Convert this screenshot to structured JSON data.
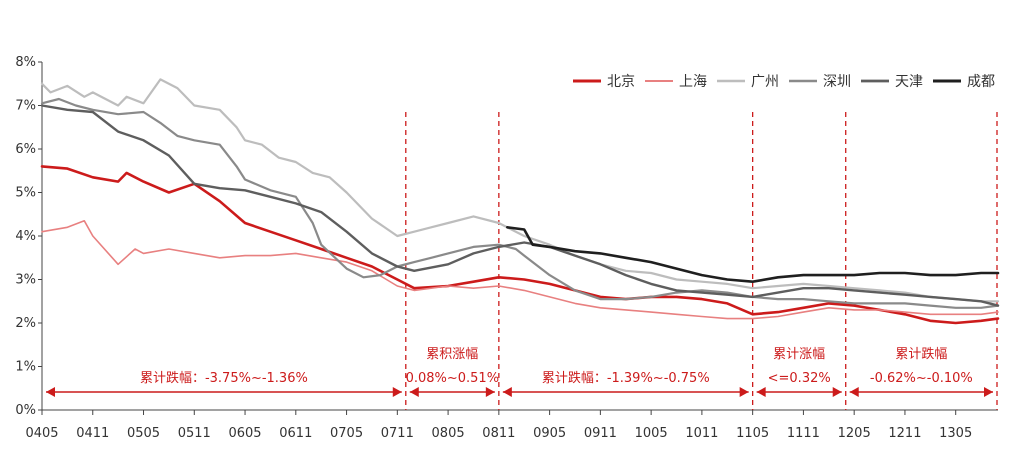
{
  "chart_data": {
    "type": "line",
    "title": "",
    "xlabel": "",
    "ylabel": "",
    "ylim": [
      0,
      8
    ],
    "yticks": [
      "0%",
      "1%",
      "2%",
      "3%",
      "4%",
      "5%",
      "6%",
      "7%",
      "8%"
    ],
    "x_ticks": [
      "0405",
      "0411",
      "0505",
      "0511",
      "0605",
      "0611",
      "0705",
      "0711",
      "0805",
      "0811",
      "0905",
      "0911",
      "1005",
      "1011",
      "1105",
      "1111",
      "1205",
      "1211",
      "1305"
    ],
    "x_range": [
      "0405",
      "1310"
    ],
    "grid": false,
    "legend": "top-right",
    "series": [
      {
        "name": "北京",
        "color": "#cc1b1b",
        "width": 2.6,
        "points": [
          [
            "0405",
            5.6
          ],
          [
            "0408",
            5.55
          ],
          [
            "0411",
            5.35
          ],
          [
            "0502",
            5.25
          ],
          [
            "0503",
            5.45
          ],
          [
            "0505",
            5.25
          ],
          [
            "0508",
            5.0
          ],
          [
            "0511",
            5.2
          ],
          [
            "0602",
            4.8
          ],
          [
            "0605",
            4.3
          ],
          [
            "0608",
            4.1
          ],
          [
            "0611",
            3.9
          ],
          [
            "0702",
            3.7
          ],
          [
            "0705",
            3.5
          ],
          [
            "0708",
            3.3
          ],
          [
            "0711",
            3.0
          ],
          [
            "0801",
            2.8
          ],
          [
            "0805",
            2.85
          ],
          [
            "0808",
            2.95
          ],
          [
            "0811",
            3.05
          ],
          [
            "0902",
            3.0
          ],
          [
            "0905",
            2.9
          ],
          [
            "0908",
            2.75
          ],
          [
            "0911",
            2.6
          ],
          [
            "1002",
            2.55
          ],
          [
            "1005",
            2.6
          ],
          [
            "1008",
            2.6
          ],
          [
            "1011",
            2.55
          ],
          [
            "1102",
            2.45
          ],
          [
            "1105",
            2.2
          ],
          [
            "1108",
            2.25
          ],
          [
            "1111",
            2.35
          ],
          [
            "1202",
            2.45
          ],
          [
            "1205",
            2.4
          ],
          [
            "1208",
            2.3
          ],
          [
            "1211",
            2.2
          ],
          [
            "1302",
            2.05
          ],
          [
            "1305",
            2.0
          ],
          [
            "1308",
            2.05
          ],
          [
            "1310",
            2.1
          ]
        ]
      },
      {
        "name": "上海",
        "color": "#e88080",
        "width": 1.6,
        "points": [
          [
            "0405",
            4.1
          ],
          [
            "0408",
            4.2
          ],
          [
            "0410",
            4.35
          ],
          [
            "0411",
            4.0
          ],
          [
            "0502",
            3.35
          ],
          [
            "0504",
            3.7
          ],
          [
            "0505",
            3.6
          ],
          [
            "0508",
            3.7
          ],
          [
            "0511",
            3.6
          ],
          [
            "0602",
            3.5
          ],
          [
            "0605",
            3.55
          ],
          [
            "0608",
            3.55
          ],
          [
            "0611",
            3.6
          ],
          [
            "0702",
            3.5
          ],
          [
            "0705",
            3.4
          ],
          [
            "0708",
            3.2
          ],
          [
            "0711",
            2.85
          ],
          [
            "0801",
            2.75
          ],
          [
            "0805",
            2.85
          ],
          [
            "0808",
            2.8
          ],
          [
            "0811",
            2.85
          ],
          [
            "0902",
            2.75
          ],
          [
            "0905",
            2.6
          ],
          [
            "0908",
            2.45
          ],
          [
            "0911",
            2.35
          ],
          [
            "1002",
            2.3
          ],
          [
            "1005",
            2.25
          ],
          [
            "1008",
            2.2
          ],
          [
            "1011",
            2.15
          ],
          [
            "1102",
            2.1
          ],
          [
            "1105",
            2.1
          ],
          [
            "1108",
            2.15
          ],
          [
            "1111",
            2.25
          ],
          [
            "1202",
            2.35
          ],
          [
            "1205",
            2.3
          ],
          [
            "1208",
            2.3
          ],
          [
            "1211",
            2.25
          ],
          [
            "1302",
            2.2
          ],
          [
            "1305",
            2.2
          ],
          [
            "1308",
            2.2
          ],
          [
            "1310",
            2.25
          ]
        ]
      },
      {
        "name": "广州",
        "color": "#bdbdbd",
        "width": 2.2,
        "points": [
          [
            "0405",
            7.5
          ],
          [
            "0406",
            7.3
          ],
          [
            "0408",
            7.45
          ],
          [
            "0410",
            7.2
          ],
          [
            "0411",
            7.3
          ],
          [
            "0502",
            7.0
          ],
          [
            "0503",
            7.2
          ],
          [
            "0505",
            7.05
          ],
          [
            "0507",
            7.6
          ],
          [
            "0509",
            7.4
          ],
          [
            "0511",
            7.0
          ],
          [
            "0602",
            6.9
          ],
          [
            "0604",
            6.5
          ],
          [
            "0605",
            6.2
          ],
          [
            "0607",
            6.1
          ],
          [
            "0609",
            5.8
          ],
          [
            "0611",
            5.7
          ],
          [
            "0701",
            5.45
          ],
          [
            "0703",
            5.35
          ],
          [
            "0705",
            5.0
          ],
          [
            "0708",
            4.4
          ],
          [
            "0711",
            4.0
          ],
          [
            "0801",
            4.1
          ],
          [
            "0803",
            4.2
          ],
          [
            "0805",
            4.3
          ],
          [
            "0808",
            4.45
          ],
          [
            "0811",
            4.3
          ],
          [
            "0902",
            4.0
          ],
          [
            "0905",
            3.8
          ],
          [
            "0908",
            3.55
          ],
          [
            "0911",
            3.35
          ],
          [
            "1002",
            3.2
          ],
          [
            "1005",
            3.15
          ],
          [
            "1008",
            3.0
          ],
          [
            "1011",
            2.95
          ],
          [
            "1102",
            2.9
          ],
          [
            "1105",
            2.8
          ],
          [
            "1108",
            2.85
          ],
          [
            "1111",
            2.9
          ],
          [
            "1202",
            2.85
          ],
          [
            "1205",
            2.8
          ],
          [
            "1208",
            2.75
          ],
          [
            "1211",
            2.7
          ],
          [
            "1302",
            2.6
          ],
          [
            "1305",
            2.55
          ],
          [
            "1308",
            2.5
          ],
          [
            "1310",
            2.5
          ]
        ]
      },
      {
        "name": "深圳",
        "color": "#8a8a8a",
        "width": 2.2,
        "points": [
          [
            "0405",
            7.05
          ],
          [
            "0407",
            7.15
          ],
          [
            "0409",
            7.0
          ],
          [
            "0411",
            6.9
          ],
          [
            "0502",
            6.8
          ],
          [
            "0505",
            6.85
          ],
          [
            "0507",
            6.6
          ],
          [
            "0509",
            6.3
          ],
          [
            "0511",
            6.2
          ],
          [
            "0602",
            6.1
          ],
          [
            "0604",
            5.6
          ],
          [
            "0605",
            5.3
          ],
          [
            "0608",
            5.05
          ],
          [
            "0611",
            4.9
          ],
          [
            "0701",
            4.3
          ],
          [
            "0702",
            3.8
          ],
          [
            "0705",
            3.25
          ],
          [
            "0707",
            3.05
          ],
          [
            "0709",
            3.1
          ],
          [
            "0711",
            3.3
          ],
          [
            "0801",
            3.4
          ],
          [
            "0803",
            3.5
          ],
          [
            "0805",
            3.6
          ],
          [
            "0808",
            3.75
          ],
          [
            "0811",
            3.8
          ],
          [
            "0901",
            3.7
          ],
          [
            "0902",
            3.55
          ],
          [
            "0905",
            3.1
          ],
          [
            "0908",
            2.75
          ],
          [
            "0911",
            2.55
          ],
          [
            "1002",
            2.55
          ],
          [
            "1005",
            2.6
          ],
          [
            "1008",
            2.7
          ],
          [
            "1011",
            2.75
          ],
          [
            "1102",
            2.7
          ],
          [
            "1105",
            2.6
          ],
          [
            "1108",
            2.55
          ],
          [
            "1111",
            2.55
          ],
          [
            "1202",
            2.5
          ],
          [
            "1205",
            2.45
          ],
          [
            "1208",
            2.45
          ],
          [
            "1211",
            2.45
          ],
          [
            "1302",
            2.4
          ],
          [
            "1305",
            2.35
          ],
          [
            "1308",
            2.35
          ],
          [
            "1310",
            2.4
          ]
        ]
      },
      {
        "name": "天津",
        "color": "#5e5e5e",
        "width": 2.4,
        "points": [
          [
            "0405",
            7.0
          ],
          [
            "0408",
            6.9
          ],
          [
            "0411",
            6.85
          ],
          [
            "0502",
            6.4
          ],
          [
            "0505",
            6.2
          ],
          [
            "0508",
            5.85
          ],
          [
            "0511",
            5.2
          ],
          [
            "0602",
            5.1
          ],
          [
            "0605",
            5.05
          ],
          [
            "0608",
            4.9
          ],
          [
            "0611",
            4.75
          ],
          [
            "0702",
            4.55
          ],
          [
            "0705",
            4.1
          ],
          [
            "0708",
            3.6
          ],
          [
            "0711",
            3.3
          ],
          [
            "0801",
            3.2
          ],
          [
            "0805",
            3.35
          ],
          [
            "0808",
            3.6
          ],
          [
            "0811",
            3.75
          ],
          [
            "0902",
            3.85
          ],
          [
            "0905",
            3.75
          ],
          [
            "0908",
            3.55
          ],
          [
            "0911",
            3.35
          ],
          [
            "1002",
            3.1
          ],
          [
            "1005",
            2.9
          ],
          [
            "1008",
            2.75
          ],
          [
            "1011",
            2.7
          ],
          [
            "1102",
            2.65
          ],
          [
            "1105",
            2.6
          ],
          [
            "1108",
            2.7
          ],
          [
            "1111",
            2.8
          ],
          [
            "1202",
            2.8
          ],
          [
            "1205",
            2.75
          ],
          [
            "1208",
            2.7
          ],
          [
            "1211",
            2.65
          ],
          [
            "1302",
            2.6
          ],
          [
            "1305",
            2.55
          ],
          [
            "1308",
            2.5
          ],
          [
            "1310",
            2.4
          ]
        ]
      },
      {
        "name": "成都",
        "color": "#1f1f1f",
        "width": 2.6,
        "points": [
          [
            "0812",
            4.2
          ],
          [
            "0902",
            4.15
          ],
          [
            "0903",
            3.8
          ],
          [
            "0905",
            3.75
          ],
          [
            "0908",
            3.65
          ],
          [
            "0911",
            3.6
          ],
          [
            "1002",
            3.5
          ],
          [
            "1005",
            3.4
          ],
          [
            "1008",
            3.25
          ],
          [
            "1011",
            3.1
          ],
          [
            "1102",
            3.0
          ],
          [
            "1105",
            2.95
          ],
          [
            "1108",
            3.05
          ],
          [
            "1111",
            3.1
          ],
          [
            "1202",
            3.1
          ],
          [
            "1205",
            3.1
          ],
          [
            "1208",
            3.15
          ],
          [
            "1211",
            3.15
          ],
          [
            "1302",
            3.1
          ],
          [
            "1305",
            3.1
          ],
          [
            "1308",
            3.15
          ],
          [
            "1310",
            3.15
          ]
        ]
      }
    ],
    "phase_dividers": [
      "0712",
      "0811",
      "1105",
      "1204",
      "1310"
    ],
    "annotations": [
      {
        "from": "0405",
        "to": "0712",
        "text": "累计跌幅：-3.75%~-1.36%"
      },
      {
        "from": "0712",
        "to": "0811",
        "line1": "累积涨幅",
        "line2": "0.08%~0.51%"
      },
      {
        "from": "0811",
        "to": "1105",
        "text": "累计跌幅：-1.39%~-0.75%"
      },
      {
        "from": "1105",
        "to": "1204",
        "line1": "累计涨幅",
        "line2": "<=0.32%"
      },
      {
        "from": "1204",
        "to": "1310",
        "line1": "累计跌幅",
        "line2": "-0.62%~-0.10%"
      }
    ]
  }
}
